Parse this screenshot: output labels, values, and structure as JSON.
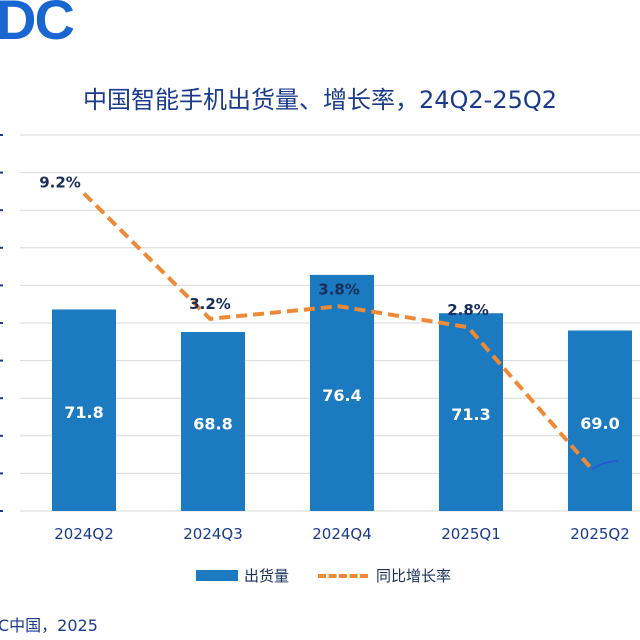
{
  "logo_text": "DC",
  "source": "C中国，2025",
  "chart_data": {
    "type": "bar+line",
    "title": "中国智能手机出货量、增长率，24Q2-25Q2",
    "categories": [
      "2024Q2",
      "2024Q3",
      "2024Q4",
      "2025Q1",
      "2025Q2"
    ],
    "series": [
      {
        "name": "出货量",
        "type": "bar",
        "values": [
          71.8,
          68.8,
          76.4,
          71.3,
          69.0
        ],
        "color": "#1b7ac0"
      },
      {
        "name": "同比增长率",
        "type": "line",
        "values": [
          9.2,
          3.2,
          3.8,
          2.8,
          -4.0
        ],
        "value_labels": [
          "9.2%",
          "3.2%",
          "3.8%",
          "2.8%",
          ""
        ],
        "color": "#ee8a36"
      }
    ],
    "bar_axis_range": [
      45,
      95
    ],
    "line_axis_range": [
      -6,
      12
    ],
    "legend_position": "bottom",
    "grid": true
  }
}
